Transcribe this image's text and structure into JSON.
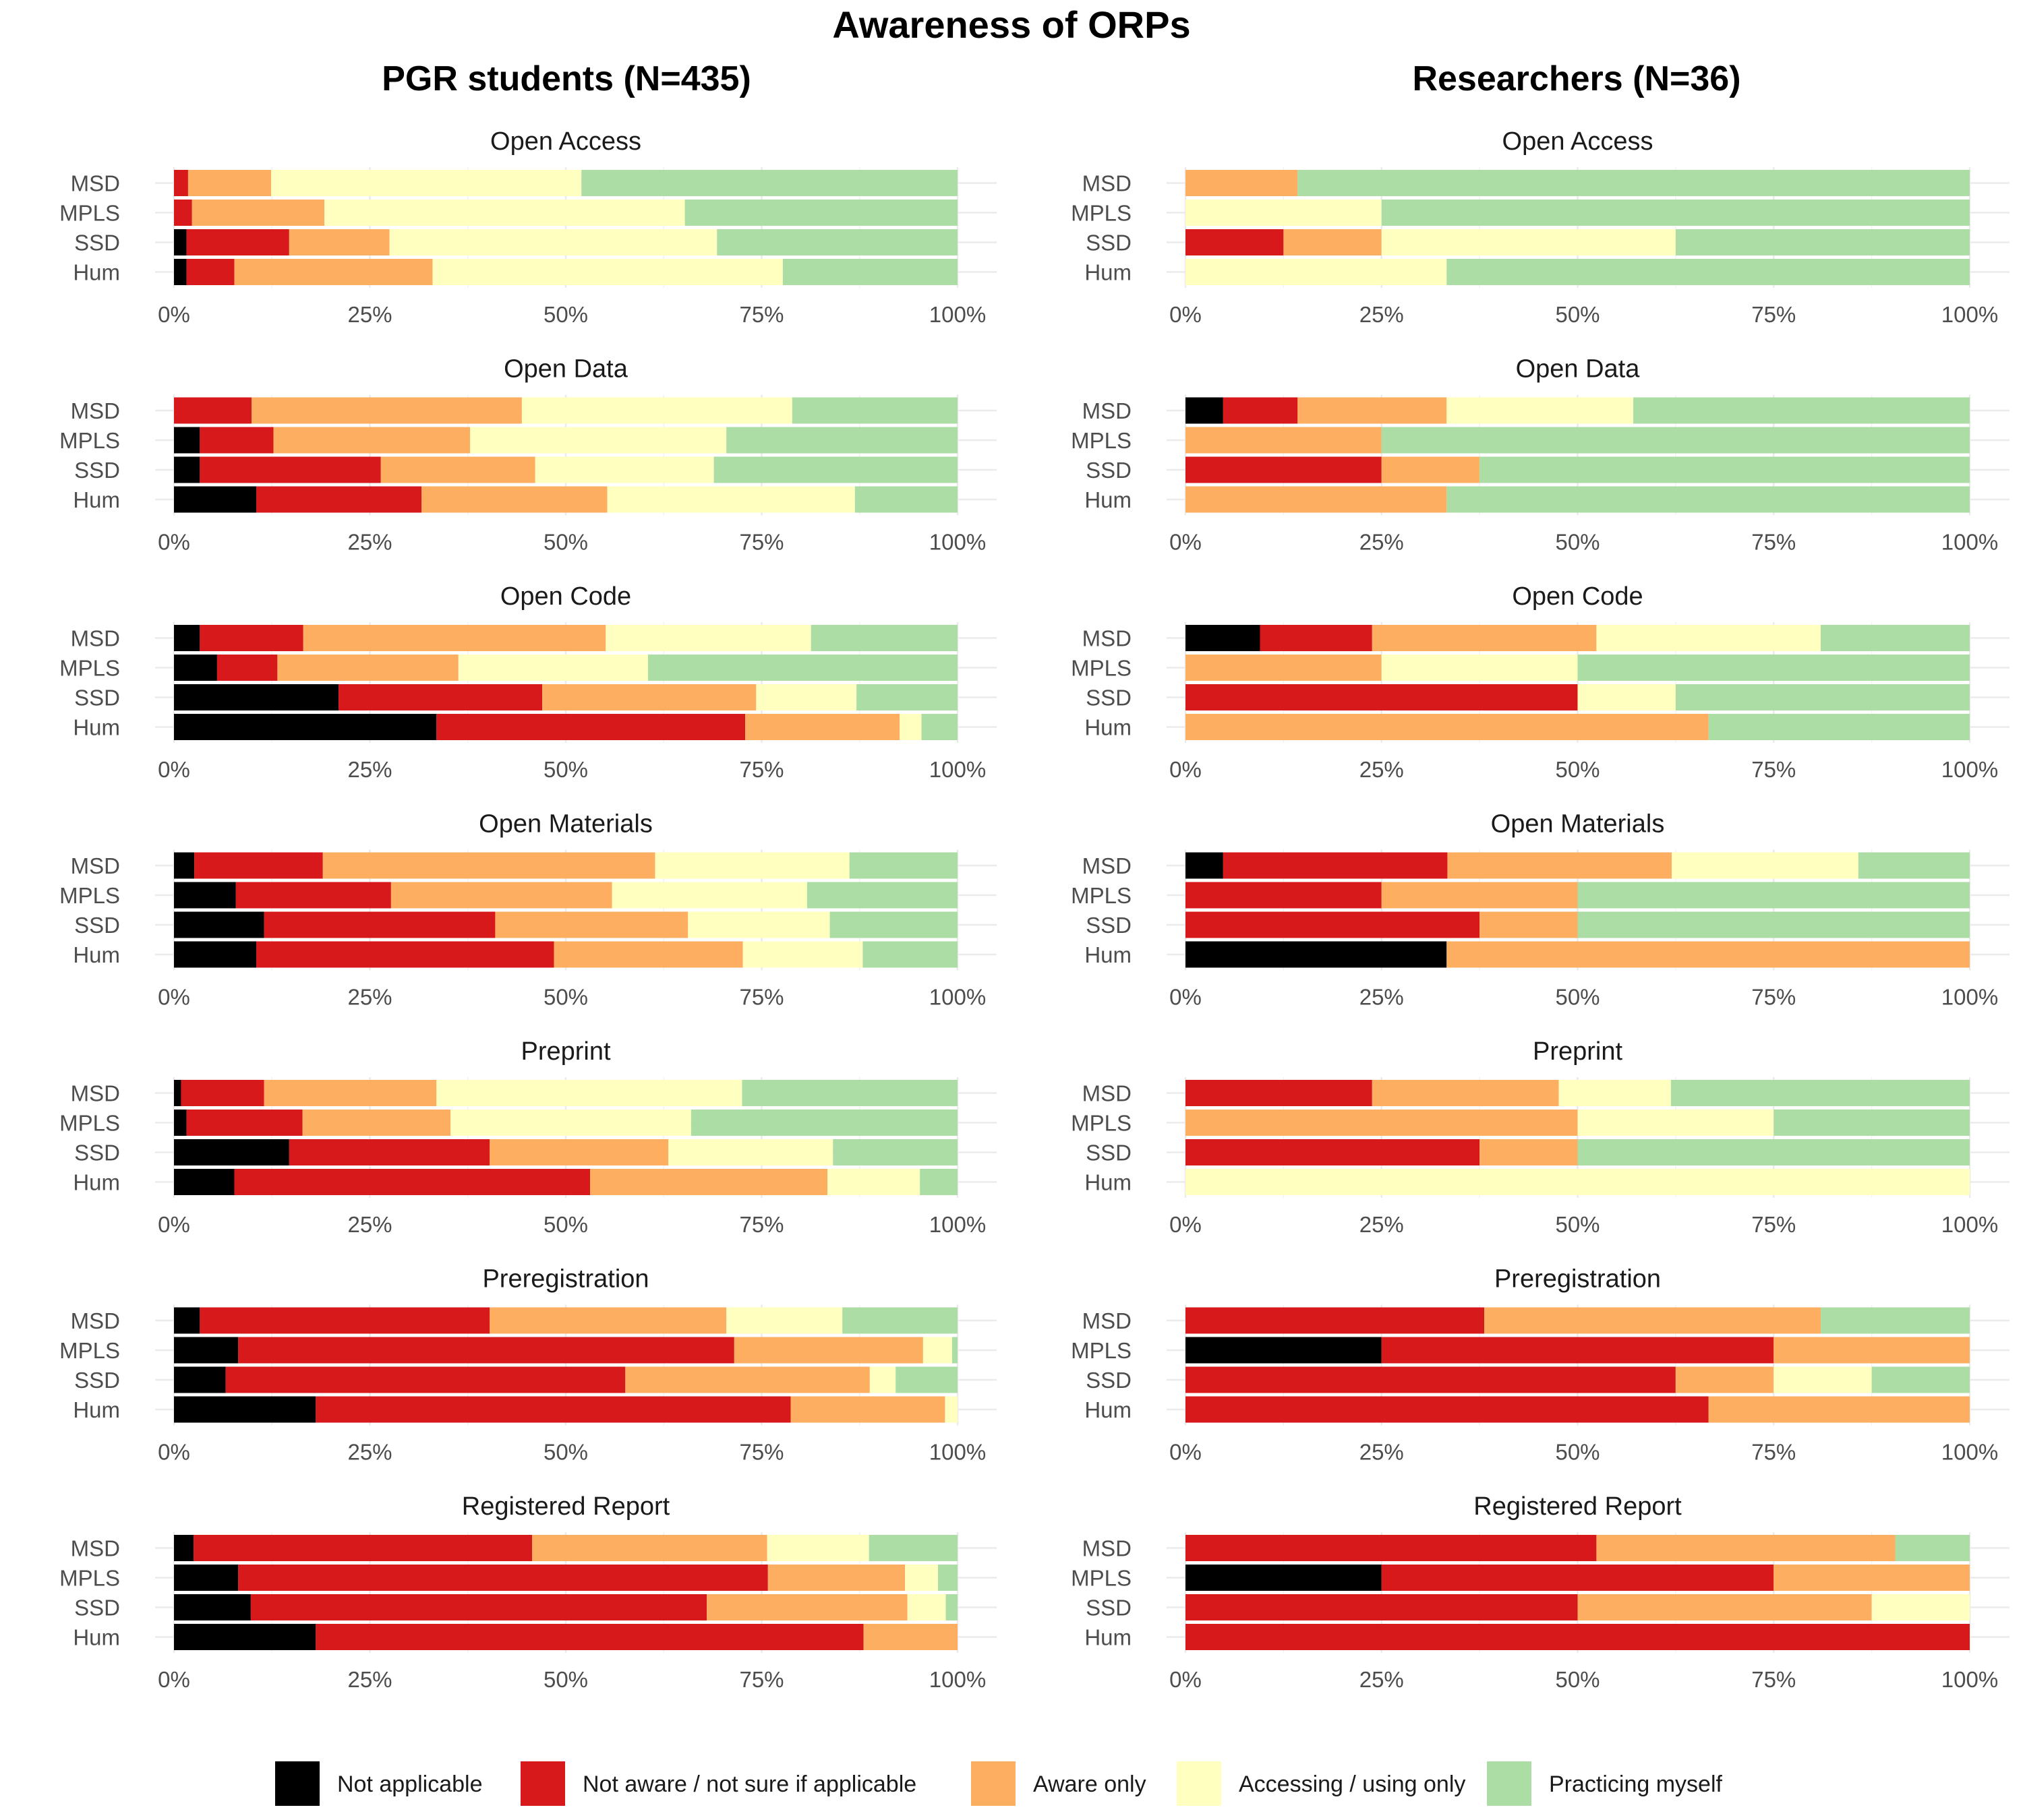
{
  "title": "Awareness of ORPs",
  "chart_data": {
    "type": "bar",
    "orientation": "horizontal",
    "stacked": "percent",
    "xlim": [
      0,
      100
    ],
    "x_ticks": [
      "0%",
      "25%",
      "50%",
      "75%",
      "100%"
    ],
    "categories": [
      "MSD",
      "MPLS",
      "SSD",
      "Hum"
    ],
    "legend_position": "bottom",
    "legend": [
      {
        "name": "Not applicable",
        "color": "#000000"
      },
      {
        "name": "Not aware / not sure if applicable",
        "color": "#d7191c"
      },
      {
        "name": "Aware only",
        "color": "#fdae61"
      },
      {
        "name": "Accessing / using only",
        "color": "#ffffbf"
      },
      {
        "name": "Practicing myself",
        "color": "#abdda4"
      }
    ],
    "groups": [
      {
        "title": "PGR students (N=435)",
        "panels": [
          {
            "title": "Open Access",
            "values": {
              "MSD": [
                0,
                1.8,
                10.6,
                39.6,
                48
              ],
              "MPLS": [
                0,
                2.3,
                16.9,
                46,
                34.8
              ],
              "SSD": [
                1.6,
                13.1,
                12.8,
                41.8,
                30.7
              ],
              "Hum": [
                1.6,
                6.1,
                25.3,
                44.7,
                22.3
              ]
            }
          },
          {
            "title": "Open Data",
            "values": {
              "MSD": [
                0,
                9.9,
                34.5,
                34.5,
                21.1
              ],
              "MPLS": [
                3.3,
                9.4,
                25.1,
                32.7,
                29.5
              ],
              "SSD": [
                3.3,
                23.1,
                19.7,
                22.8,
                31.1
              ],
              "Hum": [
                10.5,
                21.1,
                23.7,
                31.6,
                13.1
              ]
            }
          },
          {
            "title": "Open Code",
            "values": {
              "MSD": [
                3.3,
                13.2,
                38.6,
                26.2,
                18.7
              ],
              "MPLS": [
                5.5,
                7.7,
                23.1,
                24.2,
                39.5
              ],
              "SSD": [
                21,
                26,
                27.3,
                12.8,
                12.9
              ],
              "Hum": [
                33.5,
                39.4,
                19.7,
                2.8,
                4.6
              ]
            }
          },
          {
            "title": "Open Materials",
            "values": {
              "MSD": [
                2.6,
                16.4,
                42.4,
                24.8,
                13.8
              ],
              "MPLS": [
                7.9,
                19.8,
                28.2,
                24.9,
                19.2
              ],
              "SSD": [
                11.5,
                29.5,
                24.6,
                18.1,
                16.3
              ],
              "Hum": [
                10.5,
                38,
                24.1,
                15.3,
                12.1
              ]
            }
          },
          {
            "title": "Preprint",
            "values": {
              "MSD": [
                0.9,
                10.6,
                22,
                39,
                27.5
              ],
              "MPLS": [
                1.6,
                14.8,
                18.9,
                30.7,
                34
              ],
              "SSD": [
                14.7,
                25.6,
                22.8,
                21,
                15.9
              ],
              "Hum": [
                7.7,
                45.4,
                30.3,
                11.8,
                4.8
              ]
            }
          },
          {
            "title": "Preregistration",
            "values": {
              "MSD": [
                3.3,
                37,
                30.2,
                14.8,
                14.7
              ],
              "MPLS": [
                8.2,
                63.3,
                24.1,
                3.7,
                0.7
              ],
              "SSD": [
                6.6,
                51,
                31.2,
                3.3,
                7.9
              ],
              "Hum": [
                18.1,
                60.6,
                19.7,
                1.6,
                0
              ]
            }
          },
          {
            "title": "Registered Report",
            "values": {
              "MSD": [
                2.5,
                43.2,
                30,
                13,
                11.3
              ],
              "MPLS": [
                8.2,
                67.6,
                17.5,
                4.2,
                2.5
              ],
              "SSD": [
                9.8,
                58.2,
                25.6,
                4.9,
                1.5
              ],
              "Hum": [
                18.1,
                69.9,
                12,
                0,
                0
              ]
            }
          }
        ]
      },
      {
        "title": "Researchers (N=36)",
        "panels": [
          {
            "title": "Open Access",
            "values": {
              "MSD": [
                0,
                0,
                14.3,
                0,
                85.7
              ],
              "MPLS": [
                0,
                0,
                0,
                25,
                75
              ],
              "SSD": [
                0,
                12.5,
                12.5,
                37.5,
                37.5
              ],
              "Hum": [
                0,
                0,
                0,
                33.3,
                66.7
              ]
            }
          },
          {
            "title": "Open Data",
            "values": {
              "MSD": [
                4.8,
                9.5,
                19,
                23.8,
                42.9
              ],
              "MPLS": [
                0,
                0,
                25,
                0,
                75
              ],
              "SSD": [
                0,
                25,
                12.5,
                0,
                62.5
              ],
              "Hum": [
                0,
                0,
                33.3,
                0,
                66.7
              ]
            }
          },
          {
            "title": "Open Code",
            "values": {
              "MSD": [
                9.5,
                14.3,
                28.6,
                28.6,
                19
              ],
              "MPLS": [
                0,
                0,
                25,
                25,
                50
              ],
              "SSD": [
                0,
                50,
                0,
                12.5,
                37.5
              ],
              "Hum": [
                0,
                0,
                66.7,
                0,
                33.3
              ]
            }
          },
          {
            "title": "Open Materials",
            "values": {
              "MSD": [
                4.8,
                28.6,
                28.6,
                23.8,
                14.2
              ],
              "MPLS": [
                0,
                25,
                25,
                0,
                50
              ],
              "SSD": [
                0,
                37.5,
                12.5,
                0,
                50
              ],
              "Hum": [
                33.3,
                0,
                66.7,
                0,
                0
              ]
            }
          },
          {
            "title": "Preprint",
            "values": {
              "MSD": [
                0,
                23.8,
                23.8,
                14.3,
                38.1
              ],
              "MPLS": [
                0,
                0,
                50,
                25,
                25
              ],
              "SSD": [
                0,
                37.5,
                12.5,
                0,
                50
              ],
              "Hum": [
                0,
                0,
                0,
                100,
                0
              ]
            }
          },
          {
            "title": "Preregistration",
            "values": {
              "MSD": [
                0,
                38.1,
                42.9,
                0,
                19
              ],
              "MPLS": [
                25,
                50,
                25,
                0,
                0
              ],
              "SSD": [
                0,
                62.5,
                12.5,
                12.5,
                12.5
              ],
              "Hum": [
                0,
                66.7,
                33.3,
                0,
                0
              ]
            }
          },
          {
            "title": "Registered Report",
            "values": {
              "MSD": [
                0,
                52.4,
                38.1,
                0,
                9.5
              ],
              "MPLS": [
                25,
                50,
                25,
                0,
                0
              ],
              "SSD": [
                0,
                50,
                37.5,
                12.5,
                0
              ],
              "Hum": [
                0,
                100,
                0,
                0,
                0
              ]
            }
          }
        ]
      }
    ]
  }
}
